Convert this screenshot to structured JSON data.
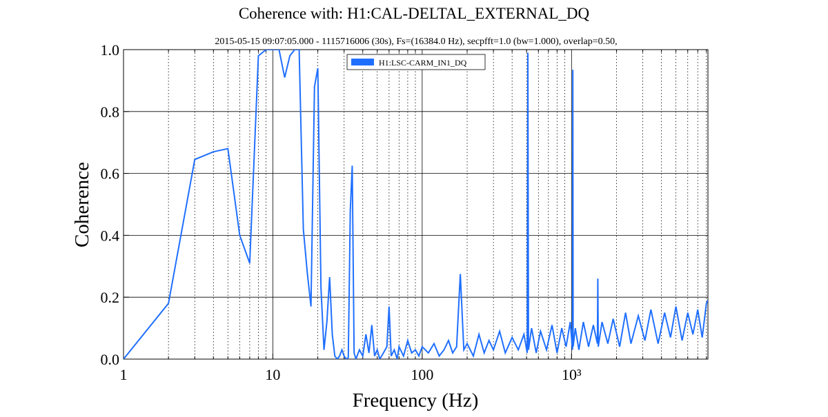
{
  "chart_data": {
    "type": "line",
    "title": "Coherence with: H1:CAL-DELTAL_EXTERNAL_DQ",
    "subtitle": "2015-05-15 09:07:05.000 - 1115716006 (30s), Fs=(16384.0 Hz), secpfft=1.0 (bw=1.000), overlap=0.50,",
    "x_label": "Frequency (Hz)",
    "y_label": "Coherence",
    "x_scale": "log",
    "grid": true,
    "legend": "top",
    "xlim": [
      1,
      8192
    ],
    "ylim": [
      0,
      1
    ],
    "xticks": [
      1,
      10,
      100,
      {
        "value": 1000,
        "label": "10³"
      }
    ],
    "xminorticks": [
      2,
      3,
      4,
      5,
      6,
      7,
      8,
      9,
      20,
      30,
      40,
      50,
      60,
      70,
      80,
      90,
      200,
      300,
      400,
      500,
      600,
      700,
      800,
      900,
      2000,
      3000,
      4000,
      5000,
      6000,
      7000,
      8000
    ],
    "yticks": [
      {
        "value": 0,
        "label": "0.0"
      },
      0.2,
      0.4,
      0.6,
      0.8,
      {
        "value": 1,
        "label": "1.0"
      }
    ],
    "x": [
      1,
      2,
      3,
      4,
      5,
      6,
      7,
      8,
      9,
      10,
      11,
      12,
      13,
      14,
      15,
      16,
      17,
      18,
      19,
      20,
      21,
      22,
      23,
      24,
      25,
      26,
      27,
      28,
      29,
      30,
      31,
      32,
      33,
      34,
      35,
      36,
      38,
      40,
      42,
      44,
      46,
      48,
      50,
      52,
      55,
      58,
      60,
      62,
      65,
      68,
      70,
      75,
      80,
      85,
      90,
      95,
      100,
      110,
      120,
      130,
      140,
      150,
      160,
      170,
      180,
      190,
      200,
      220,
      240,
      260,
      280,
      300,
      330,
      360,
      400,
      440,
      480,
      505,
      510,
      515,
      540,
      580,
      620,
      680,
      740,
      800,
      860,
      920,
      980,
      1015,
      1020,
      1025,
      1060,
      1120,
      1200,
      1300,
      1400,
      1490,
      1500,
      1510,
      1600,
      1750,
      1900,
      2100,
      2300,
      2500,
      2800,
      3100,
      3400,
      3800,
      4200,
      4600,
      5000,
      5500,
      6000,
      6500,
      7000,
      7500,
      8000,
      8192
    ],
    "series": [
      {
        "name": "H1:LSC-CARM_IN1_DQ",
        "color": "#1f6fff",
        "values": [
          0,
          0.18,
          0.645,
          0.67,
          0.68,
          0.4,
          0.31,
          0.98,
          1.0,
          1.0,
          1.0,
          0.91,
          0.98,
          1.0,
          1.0,
          0.42,
          0.28,
          0.17,
          0.88,
          0.94,
          0.23,
          0.03,
          0.12,
          0.265,
          0.08,
          0.01,
          0,
          0.01,
          0.03,
          0.01,
          0,
          0.005,
          0.48,
          0.625,
          0.02,
          0,
          0.03,
          0.01,
          0.08,
          0.02,
          0.11,
          0.01,
          0.03,
          0,
          0.02,
          0.04,
          0.17,
          0.01,
          0.03,
          0,
          0.04,
          0.01,
          0.06,
          0.02,
          0.03,
          0.01,
          0.04,
          0.02,
          0.05,
          0.01,
          0.03,
          0.06,
          0.02,
          0.04,
          0.275,
          0.03,
          0.05,
          0.01,
          0.08,
          0.02,
          0.06,
          0.03,
          0.09,
          0.02,
          0.07,
          0.03,
          0.08,
          0.02,
          0.99,
          0.03,
          0.1,
          0.02,
          0.09,
          0.03,
          0.11,
          0.02,
          0.1,
          0.04,
          0.12,
          0.03,
          0.935,
          0.04,
          0.1,
          0.03,
          0.12,
          0.04,
          0.11,
          0.05,
          0.26,
          0.04,
          0.12,
          0.05,
          0.13,
          0.04,
          0.15,
          0.05,
          0.14,
          0.06,
          0.16,
          0.05,
          0.15,
          0.07,
          0.17,
          0.06,
          0.15,
          0.08,
          0.16,
          0.07,
          0.18,
          0.19
        ]
      }
    ]
  }
}
